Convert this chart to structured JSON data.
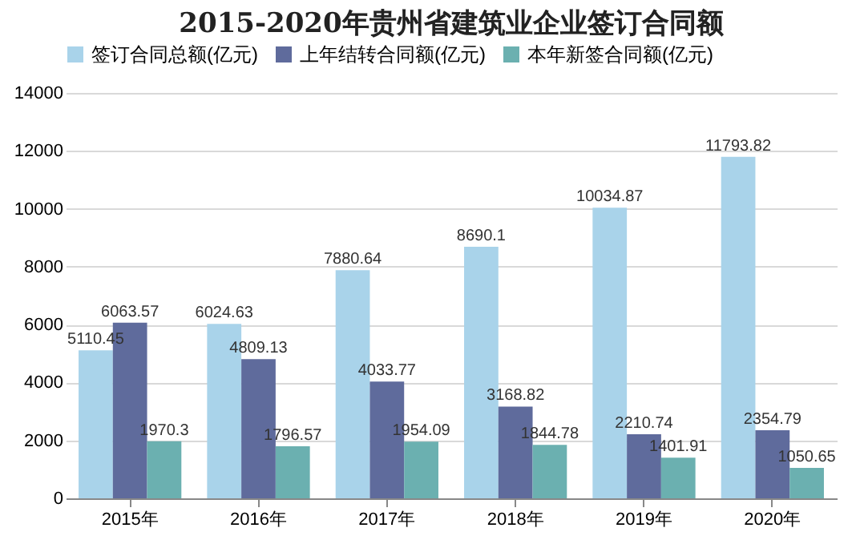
{
  "chart_data": {
    "type": "bar",
    "title": "2015-2020年贵州省建筑业企业签订合同额",
    "categories": [
      "2015年",
      "2016年",
      "2017年",
      "2018年",
      "2019年",
      "2020年"
    ],
    "series": [
      {
        "name": "签订合同总额(亿元)",
        "color": "#a9d3ea",
        "values": [
          5110.45,
          6024.63,
          7880.64,
          8690.1,
          10034.87,
          11793.82
        ]
      },
      {
        "name": "上年结转合同额(亿元)",
        "color": "#5f6b9c",
        "values": [
          6063.57,
          4809.13,
          4033.77,
          3168.82,
          2210.74,
          2354.79
        ]
      },
      {
        "name": "本年新签合同额(亿元)",
        "color": "#6bb0b0",
        "values": [
          1970.3,
          1796.57,
          1954.09,
          1844.78,
          1401.91,
          1050.65
        ]
      }
    ],
    "ylim": [
      0,
      14000
    ],
    "yticks": [
      0,
      2000,
      4000,
      6000,
      8000,
      10000,
      12000,
      14000
    ],
    "grid": "y",
    "legend": "top",
    "data_labels": true
  }
}
